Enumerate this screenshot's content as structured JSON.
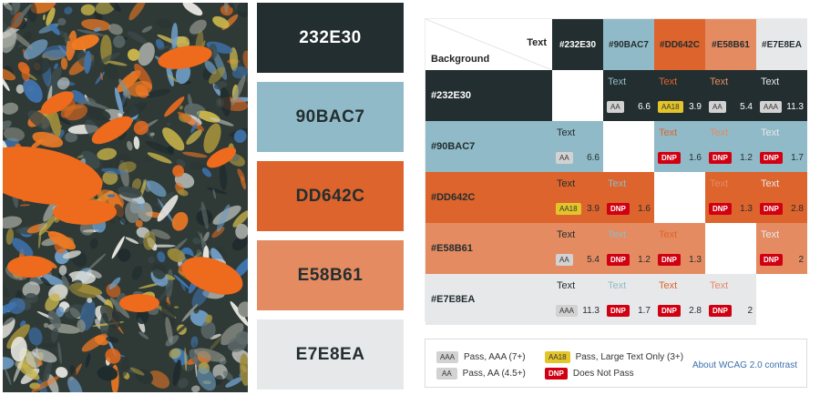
{
  "swatches": [
    {
      "code": "232E30",
      "bg": "#232E30",
      "fg": "#ffffff"
    },
    {
      "code": "90BAC7",
      "bg": "#90BAC7",
      "fg": "#232E30"
    },
    {
      "code": "DD642C",
      "bg": "#DD642C",
      "fg": "#232E30"
    },
    {
      "code": "E58B61",
      "bg": "#E58B61",
      "fg": "#232E30"
    },
    {
      "code": "E7E8EA",
      "bg": "#E7E8EA",
      "fg": "#232E30"
    }
  ],
  "matrix": {
    "corner_text": "Text",
    "corner_background": "Background",
    "text_label": "Text",
    "colors": [
      {
        "label": "#232E30",
        "hex": "#232E30",
        "hdr_fg": "#ffffff"
      },
      {
        "label": "#90BAC7",
        "hex": "#90BAC7",
        "hdr_fg": "#232E30"
      },
      {
        "label": "#DD642C",
        "hex": "#DD642C",
        "hdr_fg": "#232E30"
      },
      {
        "label": "#E58B61",
        "hex": "#E58B61",
        "hdr_fg": "#232E30"
      },
      {
        "label": "#E7E8EA",
        "hex": "#E7E8EA",
        "hdr_fg": "#232E30"
      }
    ],
    "rows": [
      [
        null,
        {
          "badge": "AA",
          "ratio": "6.6"
        },
        {
          "badge": "AA18",
          "ratio": "3.9"
        },
        {
          "badge": "AA",
          "ratio": "5.4"
        },
        {
          "badge": "AAA",
          "ratio": "11.3"
        }
      ],
      [
        {
          "badge": "AA",
          "ratio": "6.6"
        },
        null,
        {
          "badge": "DNP",
          "ratio": "1.6"
        },
        {
          "badge": "DNP",
          "ratio": "1.2"
        },
        {
          "badge": "DNP",
          "ratio": "1.7"
        }
      ],
      [
        {
          "badge": "AA18",
          "ratio": "3.9"
        },
        {
          "badge": "DNP",
          "ratio": "1.6"
        },
        null,
        {
          "badge": "DNP",
          "ratio": "1.3"
        },
        {
          "badge": "DNP",
          "ratio": "2.8"
        }
      ],
      [
        {
          "badge": "AA",
          "ratio": "5.4"
        },
        {
          "badge": "DNP",
          "ratio": "1.2"
        },
        {
          "badge": "DNP",
          "ratio": "1.3"
        },
        null,
        {
          "badge": "DNP",
          "ratio": "2"
        }
      ],
      [
        {
          "badge": "AAA",
          "ratio": "11.3"
        },
        {
          "badge": "DNP",
          "ratio": "1.7"
        },
        {
          "badge": "DNP",
          "ratio": "2.8"
        },
        {
          "badge": "DNP",
          "ratio": "2"
        },
        null
      ]
    ]
  },
  "legend": {
    "aaa": {
      "badge": "AAA",
      "text": "Pass, AAA (7+)"
    },
    "aa": {
      "badge": "AA",
      "text": "Pass, AA (4.5+)"
    },
    "aa18": {
      "badge": "AA18",
      "text": "Pass, Large Text Only (3+)"
    },
    "dnp": {
      "badge": "DNP",
      "text": "Does Not Pass"
    },
    "link": "About WCAG 2.0 contrast"
  }
}
